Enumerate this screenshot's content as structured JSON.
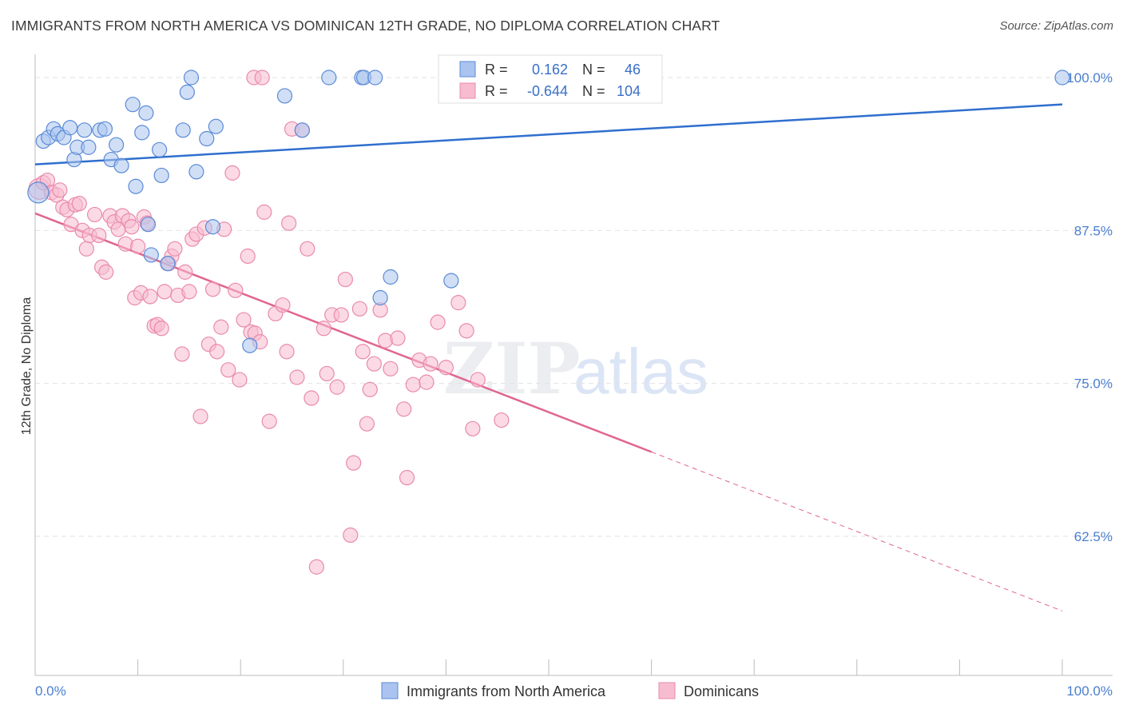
{
  "header": {
    "title": "IMMIGRANTS FROM NORTH AMERICA VS DOMINICAN 12TH GRADE, NO DIPLOMA CORRELATION CHART",
    "source": "Source: ZipAtlas.com"
  },
  "watermark": {
    "zip": "ZIP",
    "atlas": "atlas"
  },
  "colors": {
    "blue_fill": "#aac4ef",
    "blue_stroke": "#5b8ad6",
    "blue_line": "#2f6fce",
    "pink_fill": "#f7bcd0",
    "pink_stroke": "#e98aab",
    "pink_line": "#e0668f",
    "grid": "#e2e2e2",
    "tick_label": "#4a7fd0"
  },
  "legend": {
    "r_label": "R =",
    "n_label": "N =",
    "series": [
      {
        "name": "Immigrants from North America",
        "r": "0.162",
        "n": "46"
      },
      {
        "name": "Dominicans",
        "r": "-0.644",
        "n": "104"
      }
    ]
  },
  "chart_data": {
    "type": "scatter",
    "title": "IMMIGRANTS FROM NORTH AMERICA VS DOMINICAN 12TH GRADE, NO DIPLOMA CORRELATION CHART",
    "xlabel": "",
    "ylabel": "12th Grade, No Diploma",
    "xlim": [
      0,
      100
    ],
    "ylim": [
      52,
      101.5
    ],
    "x_tick_labels": [
      "0.0%",
      "100.0%"
    ],
    "y_ticks": [
      {
        "value": 100,
        "label": "100.0%"
      },
      {
        "value": 87.5,
        "label": "87.5%"
      },
      {
        "value": 75,
        "label": "75.0%"
      },
      {
        "value": 62.5,
        "label": "62.5%"
      }
    ],
    "grid": true,
    "legend_position": "top-center",
    "series": [
      {
        "name": "Immigrants from North America",
        "color": "#aac4ef",
        "r": 0.162,
        "n": 46,
        "trend": {
          "x": [
            0,
            100
          ],
          "y": [
            92.9,
            97.8
          ]
        },
        "points": [
          [
            0.3,
            90.6
          ],
          [
            0.8,
            94.8
          ],
          [
            1.3,
            95.1
          ],
          [
            1.8,
            95.8
          ],
          [
            2.2,
            95.4
          ],
          [
            2.8,
            95.1
          ],
          [
            3.4,
            95.9
          ],
          [
            3.8,
            93.3
          ],
          [
            4.1,
            94.3
          ],
          [
            4.8,
            95.7
          ],
          [
            5.2,
            94.3
          ],
          [
            6.3,
            95.7
          ],
          [
            6.8,
            95.8
          ],
          [
            7.4,
            93.3
          ],
          [
            7.9,
            94.5
          ],
          [
            8.4,
            92.8
          ],
          [
            9.5,
            97.8
          ],
          [
            9.8,
            91.1
          ],
          [
            10.4,
            95.5
          ],
          [
            10.8,
            97.1
          ],
          [
            11.0,
            88.0
          ],
          [
            11.3,
            85.5
          ],
          [
            12.1,
            94.1
          ],
          [
            12.3,
            92.0
          ],
          [
            12.9,
            84.8
          ],
          [
            14.4,
            95.7
          ],
          [
            14.8,
            98.8
          ],
          [
            15.2,
            100.0
          ],
          [
            15.7,
            92.3
          ],
          [
            16.7,
            95.0
          ],
          [
            17.3,
            87.8
          ],
          [
            17.6,
            96.0
          ],
          [
            20.9,
            78.1
          ],
          [
            24.3,
            98.5
          ],
          [
            26.0,
            95.7
          ],
          [
            28.6,
            100.0
          ],
          [
            31.8,
            100.0
          ],
          [
            32.0,
            100.0
          ],
          [
            33.1,
            100.0
          ],
          [
            33.6,
            82.0
          ],
          [
            34.6,
            83.7
          ],
          [
            40.5,
            83.4
          ],
          [
            40.6,
            100.0
          ],
          [
            47.0,
            100.0
          ],
          [
            50.3,
            100.0
          ],
          [
            100.0,
            100.0
          ]
        ]
      },
      {
        "name": "Dominicans",
        "color": "#f7bcd0",
        "r": -0.644,
        "n": 104,
        "trend": {
          "x": [
            0,
            60
          ],
          "y": [
            88.9,
            69.4
          ]
        },
        "trend_extension": {
          "x": [
            60,
            100
          ],
          "y": [
            69.4,
            56.4
          ]
        },
        "points": [
          [
            0.4,
            90.9
          ],
          [
            0.8,
            91.4
          ],
          [
            1.2,
            91.6
          ],
          [
            1.6,
            90.6
          ],
          [
            2.1,
            90.4
          ],
          [
            2.4,
            90.8
          ],
          [
            2.7,
            89.4
          ],
          [
            3.1,
            89.2
          ],
          [
            3.5,
            88.0
          ],
          [
            3.9,
            89.6
          ],
          [
            4.3,
            89.7
          ],
          [
            4.6,
            87.5
          ],
          [
            5.0,
            86.0
          ],
          [
            5.3,
            87.1
          ],
          [
            5.8,
            88.8
          ],
          [
            6.2,
            87.1
          ],
          [
            6.5,
            84.5
          ],
          [
            6.9,
            84.1
          ],
          [
            7.3,
            88.7
          ],
          [
            7.7,
            88.2
          ],
          [
            8.1,
            87.6
          ],
          [
            8.5,
            88.7
          ],
          [
            8.8,
            86.4
          ],
          [
            9.1,
            88.3
          ],
          [
            9.4,
            87.8
          ],
          [
            9.7,
            82.0
          ],
          [
            10.0,
            86.2
          ],
          [
            10.3,
            82.4
          ],
          [
            10.6,
            88.6
          ],
          [
            10.9,
            88.1
          ],
          [
            11.2,
            82.1
          ],
          [
            11.6,
            79.7
          ],
          [
            11.9,
            79.8
          ],
          [
            12.3,
            79.5
          ],
          [
            12.6,
            82.5
          ],
          [
            13.0,
            84.8
          ],
          [
            13.3,
            85.4
          ],
          [
            13.6,
            86.0
          ],
          [
            13.9,
            82.2
          ],
          [
            14.3,
            77.4
          ],
          [
            14.6,
            84.1
          ],
          [
            15.0,
            82.5
          ],
          [
            15.3,
            86.8
          ],
          [
            15.7,
            87.2
          ],
          [
            16.1,
            72.3
          ],
          [
            16.5,
            87.7
          ],
          [
            16.9,
            78.2
          ],
          [
            17.3,
            82.7
          ],
          [
            17.7,
            77.6
          ],
          [
            18.1,
            79.6
          ],
          [
            18.4,
            87.6
          ],
          [
            18.8,
            76.1
          ],
          [
            19.2,
            92.2
          ],
          [
            19.5,
            82.6
          ],
          [
            19.9,
            75.3
          ],
          [
            20.3,
            80.2
          ],
          [
            20.7,
            85.4
          ],
          [
            21.0,
            79.2
          ],
          [
            21.4,
            79.1
          ],
          [
            21.9,
            78.4
          ],
          [
            22.3,
            89.0
          ],
          [
            22.8,
            71.9
          ],
          [
            23.4,
            80.7
          ],
          [
            24.1,
            81.4
          ],
          [
            24.5,
            77.6
          ],
          [
            25.0,
            95.8
          ],
          [
            25.5,
            75.5
          ],
          [
            26.0,
            95.7
          ],
          [
            26.5,
            86.0
          ],
          [
            26.9,
            73.8
          ],
          [
            27.4,
            60.0
          ],
          [
            28.1,
            79.5
          ],
          [
            28.4,
            75.8
          ],
          [
            28.9,
            80.6
          ],
          [
            29.4,
            74.7
          ],
          [
            29.8,
            80.6
          ],
          [
            30.2,
            83.5
          ],
          [
            30.7,
            62.6
          ],
          [
            31.0,
            68.5
          ],
          [
            31.6,
            81.1
          ],
          [
            31.9,
            77.6
          ],
          [
            32.3,
            71.7
          ],
          [
            32.6,
            74.5
          ],
          [
            33.0,
            76.6
          ],
          [
            33.6,
            81.0
          ],
          [
            34.1,
            78.5
          ],
          [
            34.6,
            76.2
          ],
          [
            35.3,
            78.7
          ],
          [
            35.9,
            72.9
          ],
          [
            36.2,
            67.3
          ],
          [
            36.8,
            74.9
          ],
          [
            37.4,
            76.9
          ],
          [
            38.1,
            75.1
          ],
          [
            38.5,
            76.6
          ],
          [
            39.2,
            80.0
          ],
          [
            40.0,
            76.3
          ],
          [
            41.2,
            81.6
          ],
          [
            42.0,
            79.3
          ],
          [
            42.6,
            71.3
          ],
          [
            43.1,
            75.3
          ],
          [
            45.4,
            72.0
          ],
          [
            21.3,
            100.0
          ],
          [
            22.1,
            100.0
          ],
          [
            24.7,
            88.1
          ]
        ]
      }
    ]
  },
  "bottom_legend": [
    {
      "label": "Immigrants from North America"
    },
    {
      "label": "Dominicans"
    }
  ]
}
